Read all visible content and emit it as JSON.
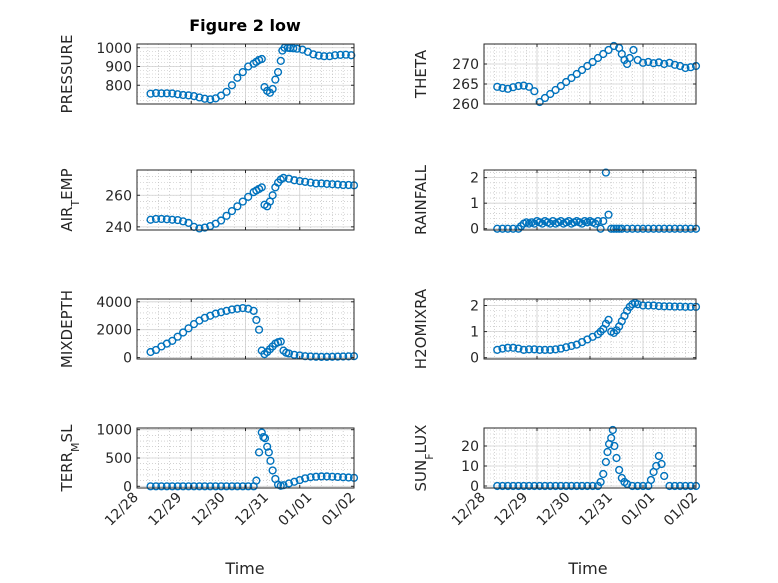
{
  "figure": {
    "title": "Figure 2 low",
    "xlabel": "Time",
    "x_tick_labels": [
      "12/28",
      "12/29",
      "12/30",
      "12/31",
      "01/01",
      "01/02"
    ],
    "marker_color": "#0072BD",
    "axes_color": "#262626",
    "grid_color": "#b8b8b8"
  },
  "chart_data": [
    {
      "type": "scatter",
      "name": "PRESSURE",
      "ylabel": "PRESSURE",
      "ylim": [
        700,
        1020
      ],
      "yticks": [
        800,
        900,
        1000
      ],
      "xlim": [
        0,
        4
      ],
      "x": [
        0.25,
        0.35,
        0.45,
        0.55,
        0.65,
        0.75,
        0.85,
        0.95,
        1.05,
        1.15,
        1.25,
        1.35,
        1.45,
        1.55,
        1.65,
        1.75,
        1.85,
        1.95,
        2.05,
        2.15,
        2.2,
        2.25,
        2.3,
        2.35,
        2.4,
        2.45,
        2.5,
        2.55,
        2.6,
        2.65,
        2.68,
        2.72,
        2.78,
        2.82,
        2.88,
        2.95,
        3.05,
        3.15,
        3.25,
        3.35,
        3.45,
        3.55,
        3.65,
        3.75,
        3.85,
        3.95
      ],
      "y": [
        755,
        758,
        757,
        757,
        756,
        752,
        748,
        746,
        742,
        735,
        728,
        725,
        730,
        745,
        765,
        800,
        840,
        870,
        900,
        915,
        925,
        935,
        940,
        790,
        770,
        760,
        780,
        830,
        870,
        930,
        985,
        1000,
        1000,
        998,
        997,
        995,
        990,
        978,
        965,
        958,
        955,
        955,
        960,
        962,
        963,
        960
      ]
    },
    {
      "type": "scatter",
      "name": "THETA",
      "ylabel": "THETA",
      "ylim": [
        260,
        275
      ],
      "yticks": [
        260,
        265,
        270
      ],
      "xlim": [
        0,
        4
      ],
      "x": [
        0.25,
        0.35,
        0.45,
        0.55,
        0.65,
        0.75,
        0.85,
        0.95,
        1.05,
        1.15,
        1.25,
        1.35,
        1.45,
        1.55,
        1.65,
        1.75,
        1.85,
        1.95,
        2.05,
        2.15,
        2.25,
        2.35,
        2.45,
        2.55,
        2.6,
        2.65,
        2.7,
        2.75,
        2.82,
        2.9,
        3.0,
        3.1,
        3.2,
        3.3,
        3.4,
        3.5,
        3.6,
        3.7,
        3.8,
        3.9,
        4.0
      ],
      "y": [
        264.3,
        264.0,
        263.8,
        264.2,
        264.5,
        264.6,
        264.3,
        263.2,
        260.5,
        261.5,
        262.5,
        263.5,
        264.5,
        265.5,
        266.5,
        267.5,
        268.5,
        269.5,
        270.5,
        271.5,
        272.5,
        273.5,
        274.5,
        274.0,
        272.5,
        271.0,
        270.0,
        271.5,
        273.5,
        271.0,
        270.3,
        270.5,
        270.2,
        270.4,
        270.0,
        270.3,
        269.8,
        269.5,
        269.0,
        269.2,
        269.5
      ]
    },
    {
      "type": "scatter",
      "name": "AIR_TEMP",
      "ylabel": "AIR_TEMP",
      "ylim": [
        238,
        276
      ],
      "yticks": [
        240,
        260
      ],
      "xlim": [
        0,
        4
      ],
      "x": [
        0.25,
        0.35,
        0.45,
        0.55,
        0.65,
        0.75,
        0.85,
        0.95,
        1.05,
        1.15,
        1.25,
        1.35,
        1.45,
        1.55,
        1.65,
        1.75,
        1.85,
        1.95,
        2.05,
        2.15,
        2.2,
        2.25,
        2.3,
        2.35,
        2.4,
        2.45,
        2.5,
        2.55,
        2.6,
        2.65,
        2.7,
        2.8,
        2.9,
        3.0,
        3.1,
        3.2,
        3.3,
        3.4,
        3.5,
        3.6,
        3.7,
        3.8,
        3.9,
        4.0
      ],
      "y": [
        244.5,
        245,
        245,
        244.8,
        244.5,
        244.3,
        243.5,
        242.5,
        240,
        239,
        239.5,
        240.5,
        242,
        244,
        247,
        250,
        253,
        256,
        259,
        262,
        263,
        264,
        265,
        254,
        253,
        256,
        260,
        265,
        268,
        270,
        271,
        270.5,
        269.5,
        269,
        268.5,
        268,
        267.5,
        267.5,
        267.2,
        267.0,
        266.8,
        266.5,
        266.5,
        266.3
      ]
    },
    {
      "type": "scatter",
      "name": "RAINFALL",
      "ylabel": "RAINFALL",
      "ylim": [
        -0.05,
        2.3
      ],
      "yticks": [
        0,
        1,
        2
      ],
      "xlim": [
        0,
        4
      ],
      "x": [
        0.25,
        0.35,
        0.45,
        0.55,
        0.65,
        0.7,
        0.75,
        0.8,
        0.85,
        0.9,
        0.95,
        1.0,
        1.05,
        1.1,
        1.15,
        1.2,
        1.25,
        1.3,
        1.35,
        1.4,
        1.45,
        1.5,
        1.55,
        1.6,
        1.65,
        1.7,
        1.75,
        1.8,
        1.85,
        1.9,
        1.95,
        2.0,
        2.05,
        2.1,
        2.15,
        2.2,
        2.25,
        2.3,
        2.35,
        2.4,
        2.45,
        2.5,
        2.55,
        2.6,
        2.7,
        2.8,
        2.9,
        3.0,
        3.1,
        3.2,
        3.3,
        3.4,
        3.5,
        3.6,
        3.7,
        3.8,
        3.9,
        4.0
      ],
      "y": [
        0,
        0,
        0,
        0,
        0,
        0.1,
        0.2,
        0.25,
        0.2,
        0.25,
        0.2,
        0.3,
        0.25,
        0.2,
        0.3,
        0.25,
        0.2,
        0.3,
        0.2,
        0.25,
        0.3,
        0.2,
        0.25,
        0.3,
        0.2,
        0.25,
        0.3,
        0.25,
        0.2,
        0.3,
        0.25,
        0.3,
        0.25,
        0.2,
        0.3,
        0,
        0.3,
        2.2,
        0.55,
        0,
        0,
        0,
        0,
        0,
        0,
        0,
        0,
        0,
        0,
        0,
        0,
        0,
        0,
        0,
        0,
        0,
        0,
        0
      ]
    },
    {
      "type": "scatter",
      "name": "MIXDEPTH",
      "ylabel": "MIXDEPTH",
      "ylim": [
        -100,
        4200
      ],
      "yticks": [
        0,
        2000,
        4000
      ],
      "xlim": [
        0,
        4
      ],
      "x": [
        0.25,
        0.35,
        0.45,
        0.55,
        0.65,
        0.75,
        0.85,
        0.95,
        1.05,
        1.15,
        1.25,
        1.35,
        1.45,
        1.55,
        1.65,
        1.75,
        1.85,
        1.95,
        2.05,
        2.15,
        2.2,
        2.25,
        2.3,
        2.35,
        2.4,
        2.45,
        2.5,
        2.55,
        2.6,
        2.65,
        2.7,
        2.75,
        2.8,
        2.9,
        3.0,
        3.1,
        3.2,
        3.3,
        3.4,
        3.5,
        3.6,
        3.7,
        3.8,
        3.9,
        4.0
      ],
      "y": [
        400,
        550,
        800,
        1000,
        1200,
        1500,
        1800,
        2100,
        2400,
        2650,
        2850,
        3000,
        3150,
        3250,
        3350,
        3450,
        3500,
        3550,
        3500,
        3350,
        2700,
        2000,
        500,
        250,
        400,
        600,
        800,
        1000,
        1100,
        1150,
        500,
        350,
        300,
        200,
        150,
        100,
        80,
        60,
        50,
        50,
        60,
        70,
        80,
        90,
        100
      ]
    },
    {
      "type": "scatter",
      "name": "H2OMIXRA",
      "ylabel": "H2OMIXRA",
      "ylim": [
        -0.05,
        2.25
      ],
      "yticks": [
        0,
        1,
        2
      ],
      "xlim": [
        0,
        4
      ],
      "x": [
        0.25,
        0.35,
        0.45,
        0.55,
        0.65,
        0.75,
        0.85,
        0.95,
        1.05,
        1.15,
        1.25,
        1.35,
        1.45,
        1.55,
        1.65,
        1.75,
        1.85,
        1.95,
        2.05,
        2.15,
        2.2,
        2.25,
        2.3,
        2.35,
        2.4,
        2.45,
        2.5,
        2.55,
        2.6,
        2.65,
        2.7,
        2.75,
        2.8,
        2.85,
        2.9,
        3.0,
        3.1,
        3.2,
        3.3,
        3.4,
        3.5,
        3.6,
        3.7,
        3.8,
        3.9,
        4.0
      ],
      "y": [
        0.3,
        0.35,
        0.38,
        0.38,
        0.35,
        0.3,
        0.32,
        0.32,
        0.3,
        0.3,
        0.3,
        0.32,
        0.35,
        0.4,
        0.45,
        0.5,
        0.6,
        0.7,
        0.8,
        0.9,
        1.0,
        1.1,
        1.3,
        1.45,
        1.0,
        0.95,
        1.05,
        1.2,
        1.4,
        1.6,
        1.8,
        1.95,
        2.05,
        2.1,
        2.05,
        2.0,
        2.0,
        2.0,
        1.98,
        1.97,
        1.97,
        1.96,
        1.96,
        1.95,
        1.95,
        1.95
      ]
    },
    {
      "type": "scatter",
      "name": "TERR_MSL",
      "ylabel": "TERR_MSL",
      "ylim": [
        -30,
        1030
      ],
      "yticks": [
        0,
        500,
        1000
      ],
      "xlim": [
        0,
        4
      ],
      "x": [
        0.25,
        0.35,
        0.45,
        0.55,
        0.65,
        0.75,
        0.85,
        0.95,
        1.05,
        1.15,
        1.25,
        1.35,
        1.45,
        1.55,
        1.65,
        1.75,
        1.85,
        1.95,
        2.05,
        2.15,
        2.2,
        2.25,
        2.3,
        2.33,
        2.36,
        2.4,
        2.43,
        2.46,
        2.5,
        2.55,
        2.6,
        2.65,
        2.7,
        2.8,
        2.9,
        3.0,
        3.1,
        3.2,
        3.3,
        3.4,
        3.5,
        3.6,
        3.7,
        3.8,
        3.9,
        4.0
      ],
      "y": [
        0,
        0,
        0,
        0,
        0,
        0,
        0,
        0,
        0,
        0,
        0,
        0,
        0,
        0,
        0,
        0,
        0,
        0,
        0,
        0,
        100,
        600,
        950,
        870,
        850,
        700,
        600,
        450,
        280,
        130,
        30,
        10,
        20,
        50,
        80,
        110,
        140,
        160,
        170,
        175,
        175,
        170,
        165,
        160,
        155,
        150
      ]
    },
    {
      "type": "scatter",
      "name": "SUN_FLUX",
      "ylabel": "SUN_FLUX",
      "ylim": [
        -1,
        29
      ],
      "yticks": [
        0,
        10,
        20
      ],
      "xlim": [
        0,
        4
      ],
      "x": [
        0.25,
        0.35,
        0.45,
        0.55,
        0.65,
        0.75,
        0.85,
        0.95,
        1.05,
        1.15,
        1.25,
        1.35,
        1.45,
        1.55,
        1.65,
        1.75,
        1.85,
        1.95,
        2.05,
        2.15,
        2.2,
        2.25,
        2.3,
        2.33,
        2.36,
        2.4,
        2.43,
        2.46,
        2.5,
        2.55,
        2.6,
        2.65,
        2.7,
        2.8,
        2.9,
        3.0,
        3.1,
        3.15,
        3.2,
        3.25,
        3.3,
        3.35,
        3.4,
        3.5,
        3.6,
        3.7,
        3.8,
        3.9,
        4.0
      ],
      "y": [
        0,
        0,
        0,
        0,
        0,
        0,
        0,
        0,
        0,
        0,
        0,
        0,
        0,
        0,
        0,
        0,
        0,
        0,
        0,
        0,
        2,
        6,
        12,
        17,
        21,
        24,
        28,
        20,
        14,
        8,
        4,
        2,
        1,
        0,
        0,
        0,
        0,
        3,
        7,
        10,
        15,
        11,
        5,
        0,
        0,
        0,
        0,
        0,
        0
      ]
    }
  ],
  "y_label_parts": [
    {
      "main": "PRESSURE",
      "sub": ""
    },
    {
      "main": "THETA",
      "sub": ""
    },
    {
      "main": "AIR",
      "sub": "T",
      "rest": "EMP"
    },
    {
      "main": "RAINFALL",
      "sub": ""
    },
    {
      "main": "MIXDEPTH",
      "sub": ""
    },
    {
      "main": "H2OMIXRA",
      "sub": ""
    },
    {
      "main": "TERR",
      "sub": "M",
      "rest": "SL"
    },
    {
      "main": "SUN",
      "sub": "F",
      "rest": "LUX"
    }
  ]
}
